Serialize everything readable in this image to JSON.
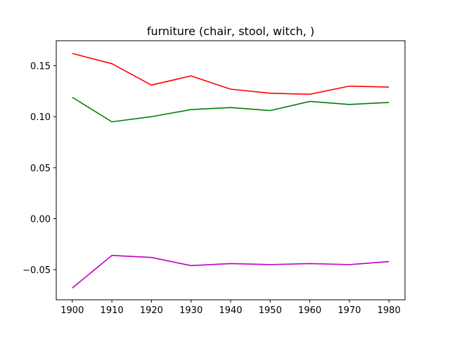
{
  "chart_data": {
    "type": "line",
    "title": "furniture (chair, stool, witch, )",
    "xlabel": "",
    "ylabel": "",
    "x": [
      1900,
      1910,
      1920,
      1930,
      1940,
      1950,
      1960,
      1970,
      1980
    ],
    "xlim": [
      1895.95,
      1984.05
    ],
    "ylim": [
      -0.0795,
      0.1745
    ],
    "xticks": [
      1900,
      1910,
      1920,
      1930,
      1940,
      1950,
      1960,
      1970,
      1980
    ],
    "yticks": [
      -0.05,
      0.0,
      0.05,
      0.1,
      0.15
    ],
    "ytick_labels": [
      "−0.05",
      "0.00",
      "0.05",
      "0.10",
      "0.15"
    ],
    "grid": false,
    "series": [
      {
        "color": "#ff0000",
        "values": [
          0.162,
          0.152,
          0.131,
          0.14,
          0.127,
          0.123,
          0.122,
          0.13,
          0.129
        ]
      },
      {
        "color": "#008000",
        "values": [
          0.119,
          0.095,
          0.1,
          0.107,
          0.109,
          0.106,
          0.115,
          0.112,
          0.114
        ]
      },
      {
        "color": "#bf00bf",
        "values": [
          -0.068,
          -0.036,
          -0.038,
          -0.046,
          -0.044,
          -0.045,
          -0.044,
          -0.045,
          -0.042
        ]
      }
    ]
  }
}
